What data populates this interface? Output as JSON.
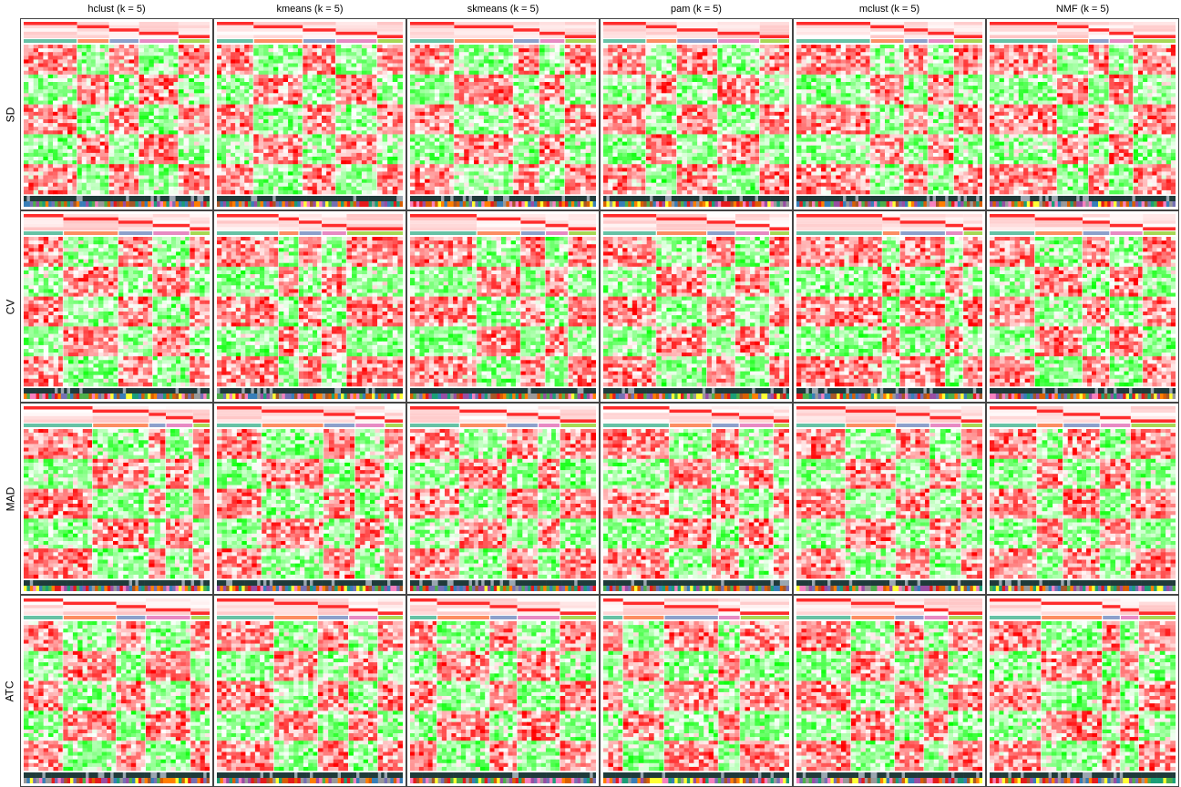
{
  "chart_data": {
    "type": "heatmap",
    "description_columns": [
      "hclust (k = 5)",
      "kmeans (k = 5)",
      "skmeans (k = 5)",
      "pam (k = 5)",
      "mclust (k = 5)",
      "NMF (k = 5)"
    ],
    "description_rows": [
      "SD",
      "CV",
      "MAD",
      "ATC"
    ],
    "k": 5,
    "colors": {
      "low": "#00ff00",
      "mid": "#ffffff",
      "high": "#ff0000",
      "class_bar": "#66c2a5",
      "annotation_dark": "#1f3a3a"
    }
  }
}
